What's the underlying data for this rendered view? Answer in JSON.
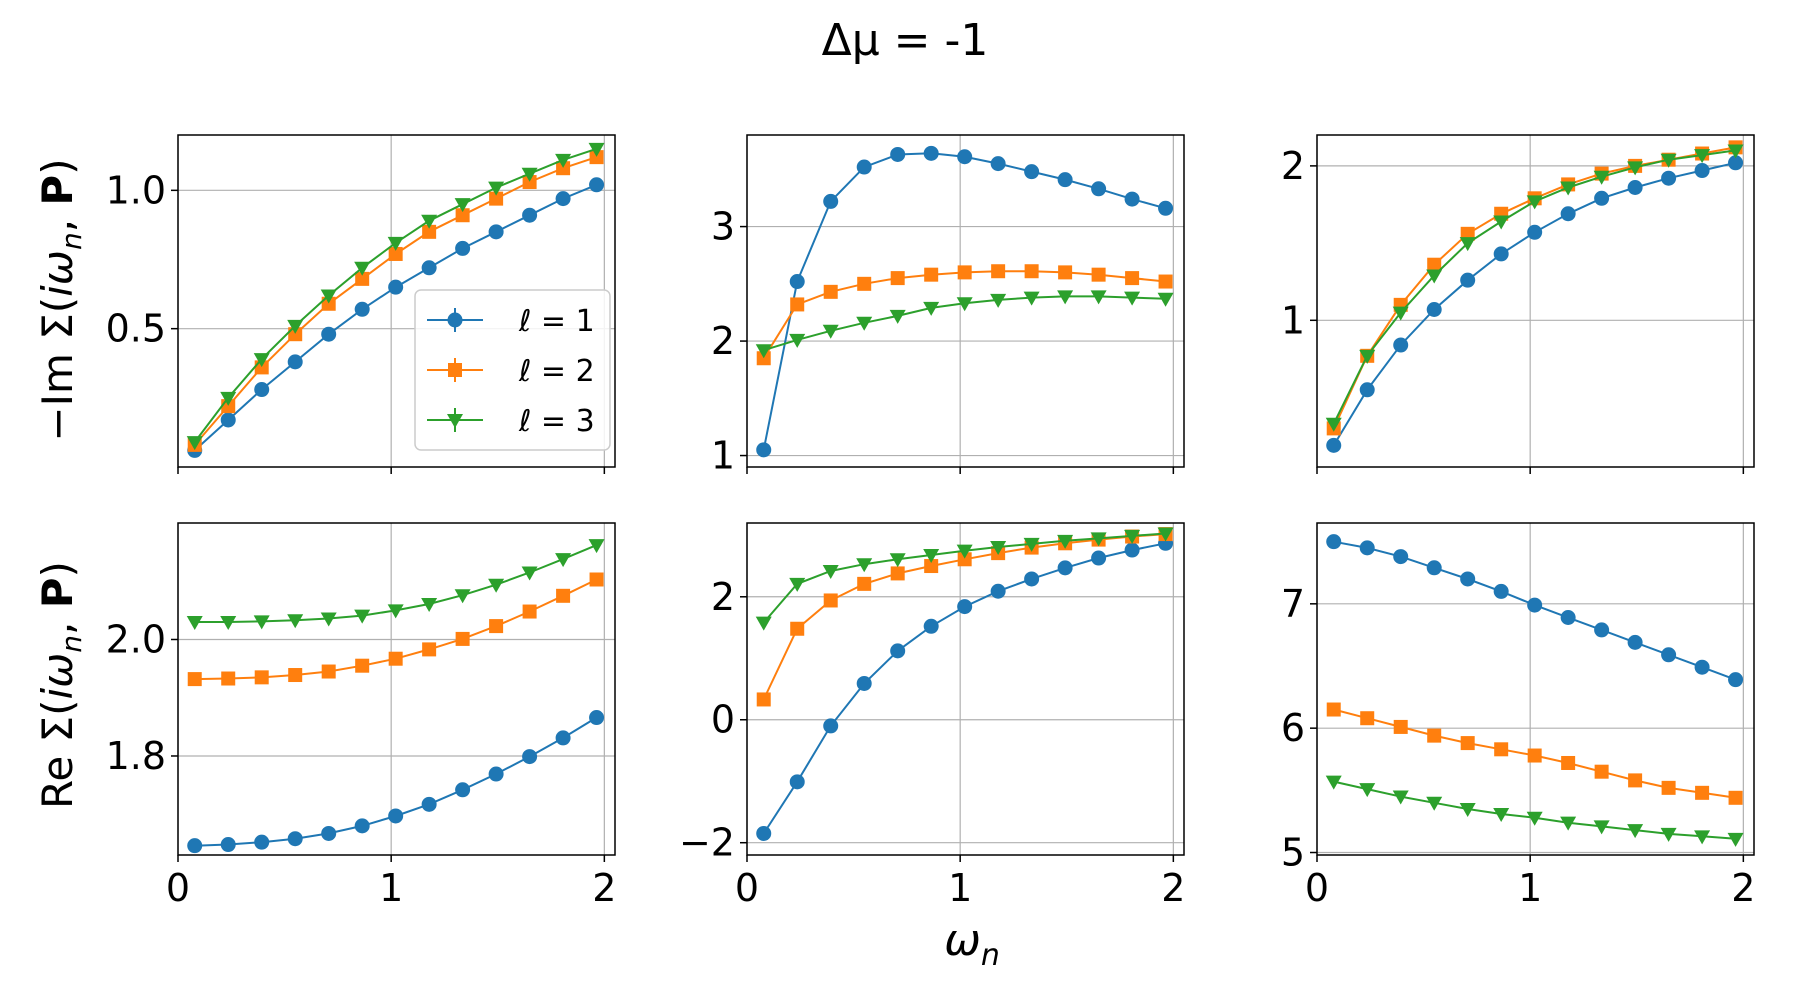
{
  "figure": {
    "title": "Δμ = -1",
    "xlabel": "ω",
    "xlabel_sub": "n",
    "row_labels": [
      {
        "prefix": "−Im Σ(",
        "omega": "iω",
        "sub": "n",
        "comma": ", ",
        "bold": "P",
        "suffix": ")"
      },
      {
        "prefix": "Re Σ(",
        "omega": "iω",
        "sub": "n",
        "comma": ", ",
        "bold": "P",
        "suffix": ")"
      }
    ]
  },
  "colors": {
    "l1": "#1f77b4",
    "l2": "#ff7f0e",
    "l3": "#2ca02c",
    "grid": "#b0b0b0",
    "axis": "#000000"
  },
  "legend": {
    "placement": "lower-right of top-left panel",
    "entries": [
      {
        "label": "ℓ = 1",
        "marker": "circle",
        "color": "#1f77b4"
      },
      {
        "label": "ℓ = 2",
        "marker": "square",
        "color": "#ff7f0e"
      },
      {
        "label": "ℓ = 3",
        "marker": "triangle-down",
        "color": "#2ca02c"
      }
    ]
  },
  "chart_data": [
    {
      "type": "line",
      "row": 0,
      "col": 0,
      "xlim": [
        0,
        2.05
      ],
      "ylim": [
        0.0,
        1.2
      ],
      "xticks": [
        0,
        1,
        2
      ],
      "xticklabels": [
        "",
        "",
        ""
      ],
      "yticks": [
        0.5,
        1.0
      ],
      "yticklabels": [
        "0.5",
        "1.0"
      ],
      "x": [
        0.0785,
        0.2356,
        0.3927,
        0.5498,
        0.7069,
        0.864,
        1.0211,
        1.1781,
        1.3352,
        1.4923,
        1.6494,
        1.8065,
        1.9635
      ],
      "series": [
        {
          "name": "ℓ = 1",
          "values": [
            0.06,
            0.17,
            0.28,
            0.38,
            0.48,
            0.57,
            0.65,
            0.72,
            0.79,
            0.85,
            0.91,
            0.97,
            1.02
          ]
        },
        {
          "name": "ℓ = 2",
          "values": [
            0.08,
            0.22,
            0.36,
            0.48,
            0.59,
            0.68,
            0.77,
            0.85,
            0.91,
            0.97,
            1.03,
            1.08,
            1.12
          ]
        },
        {
          "name": "ℓ = 3",
          "values": [
            0.09,
            0.25,
            0.39,
            0.51,
            0.62,
            0.72,
            0.81,
            0.89,
            0.95,
            1.01,
            1.06,
            1.11,
            1.15
          ]
        }
      ]
    },
    {
      "type": "line",
      "row": 0,
      "col": 1,
      "xlim": [
        0,
        2.05
      ],
      "ylim": [
        0.9,
        3.8
      ],
      "xticks": [
        0,
        1,
        2
      ],
      "xticklabels": [
        "",
        "",
        ""
      ],
      "yticks": [
        1,
        2,
        3
      ],
      "yticklabels": [
        "1",
        "2",
        "3"
      ],
      "x": [
        0.0785,
        0.2356,
        0.3927,
        0.5498,
        0.7069,
        0.864,
        1.0211,
        1.1781,
        1.3352,
        1.4923,
        1.6494,
        1.8065,
        1.9635
      ],
      "series": [
        {
          "name": "ℓ = 1",
          "values": [
            1.05,
            2.52,
            3.22,
            3.52,
            3.63,
            3.64,
            3.61,
            3.55,
            3.48,
            3.41,
            3.33,
            3.24,
            3.16
          ]
        },
        {
          "name": "ℓ = 2",
          "values": [
            1.85,
            2.32,
            2.43,
            2.5,
            2.55,
            2.58,
            2.6,
            2.61,
            2.61,
            2.6,
            2.58,
            2.55,
            2.52
          ]
        },
        {
          "name": "ℓ = 3",
          "values": [
            1.92,
            2.01,
            2.09,
            2.16,
            2.22,
            2.29,
            2.33,
            2.36,
            2.38,
            2.39,
            2.39,
            2.38,
            2.37
          ]
        }
      ]
    },
    {
      "type": "line",
      "row": 0,
      "col": 2,
      "xlim": [
        0,
        2.05
      ],
      "ylim": [
        0.05,
        2.2
      ],
      "xticks": [
        0,
        1,
        2
      ],
      "xticklabels": [
        "",
        "",
        ""
      ],
      "yticks": [
        1,
        2
      ],
      "yticklabels": [
        "1",
        "2"
      ],
      "x": [
        0.0785,
        0.2356,
        0.3927,
        0.5498,
        0.7069,
        0.864,
        1.0211,
        1.1781,
        1.3352,
        1.4923,
        1.6494,
        1.8065,
        1.9635
      ],
      "series": [
        {
          "name": "ℓ = 1",
          "values": [
            0.19,
            0.55,
            0.84,
            1.07,
            1.26,
            1.43,
            1.57,
            1.69,
            1.79,
            1.86,
            1.92,
            1.97,
            2.02
          ]
        },
        {
          "name": "ℓ = 2",
          "values": [
            0.3,
            0.77,
            1.1,
            1.36,
            1.56,
            1.69,
            1.79,
            1.88,
            1.95,
            2.0,
            2.04,
            2.08,
            2.12
          ]
        },
        {
          "name": "ℓ = 3",
          "values": [
            0.33,
            0.77,
            1.05,
            1.29,
            1.5,
            1.64,
            1.77,
            1.86,
            1.93,
            1.99,
            2.04,
            2.07,
            2.1
          ]
        }
      ]
    },
    {
      "type": "line",
      "row": 1,
      "col": 0,
      "xlim": [
        0,
        2.05
      ],
      "ylim": [
        1.63,
        2.2
      ],
      "xticks": [
        0,
        1,
        2
      ],
      "xticklabels": [
        "0",
        "1",
        "2"
      ],
      "yticks": [
        1.8,
        2.0
      ],
      "yticklabels": [
        "1.8",
        "2.0"
      ],
      "x": [
        0.0785,
        0.2356,
        0.3927,
        0.5498,
        0.7069,
        0.864,
        1.0211,
        1.1781,
        1.3352,
        1.4923,
        1.6494,
        1.8065,
        1.9635
      ],
      "series": [
        {
          "name": "ℓ = 1",
          "values": [
            1.646,
            1.648,
            1.652,
            1.658,
            1.667,
            1.68,
            1.697,
            1.717,
            1.742,
            1.769,
            1.799,
            1.831,
            1.866
          ]
        },
        {
          "name": "ℓ = 2",
          "values": [
            1.932,
            1.933,
            1.935,
            1.939,
            1.945,
            1.955,
            1.967,
            1.983,
            2.001,
            2.023,
            2.048,
            2.075,
            2.103
          ]
        },
        {
          "name": "ℓ = 3",
          "values": [
            2.03,
            2.03,
            2.031,
            2.033,
            2.036,
            2.041,
            2.05,
            2.061,
            2.076,
            2.094,
            2.115,
            2.138,
            2.162
          ]
        }
      ]
    },
    {
      "type": "line",
      "row": 1,
      "col": 1,
      "xlim": [
        0,
        2.05
      ],
      "ylim": [
        -2.2,
        3.2
      ],
      "xticks": [
        0,
        1,
        2
      ],
      "xticklabels": [
        "0",
        "1",
        "2"
      ],
      "yticks": [
        -2,
        0,
        2
      ],
      "yticklabels": [
        "−2",
        "0",
        "2"
      ],
      "x": [
        0.0785,
        0.2356,
        0.3927,
        0.5498,
        0.7069,
        0.864,
        1.0211,
        1.1781,
        1.3352,
        1.4923,
        1.6494,
        1.8065,
        1.9635
      ],
      "series": [
        {
          "name": "ℓ = 1",
          "values": [
            -1.85,
            -1.01,
            -0.1,
            0.59,
            1.12,
            1.52,
            1.84,
            2.09,
            2.29,
            2.47,
            2.63,
            2.76,
            2.87
          ]
        },
        {
          "name": "ℓ = 2",
          "values": [
            0.33,
            1.48,
            1.94,
            2.21,
            2.38,
            2.5,
            2.61,
            2.71,
            2.8,
            2.87,
            2.93,
            2.98,
            3.02
          ]
        },
        {
          "name": "ℓ = 3",
          "values": [
            1.58,
            2.21,
            2.42,
            2.53,
            2.61,
            2.68,
            2.75,
            2.81,
            2.86,
            2.91,
            2.95,
            2.99,
            3.03
          ]
        }
      ]
    },
    {
      "type": "line",
      "row": 1,
      "col": 2,
      "xlim": [
        0,
        2.05
      ],
      "ylim": [
        4.98,
        7.65
      ],
      "xticks": [
        0,
        1,
        2
      ],
      "xticklabels": [
        "0",
        "1",
        "2"
      ],
      "yticks": [
        5,
        6,
        7
      ],
      "yticklabels": [
        "5",
        "6",
        "7"
      ],
      "x": [
        0.0785,
        0.2356,
        0.3927,
        0.5498,
        0.7069,
        0.864,
        1.0211,
        1.1781,
        1.3352,
        1.4923,
        1.6494,
        1.8065,
        1.9635
      ],
      "series": [
        {
          "name": "ℓ = 1",
          "values": [
            7.5,
            7.45,
            7.38,
            7.29,
            7.2,
            7.1,
            6.99,
            6.89,
            6.79,
            6.69,
            6.59,
            6.49,
            6.39
          ]
        },
        {
          "name": "ℓ = 2",
          "values": [
            6.15,
            6.08,
            6.01,
            5.94,
            5.88,
            5.83,
            5.78,
            5.72,
            5.65,
            5.58,
            5.52,
            5.48,
            5.44
          ]
        },
        {
          "name": "ℓ = 3",
          "values": [
            5.57,
            5.51,
            5.45,
            5.4,
            5.35,
            5.31,
            5.28,
            5.24,
            5.21,
            5.18,
            5.15,
            5.13,
            5.11
          ]
        }
      ]
    }
  ]
}
